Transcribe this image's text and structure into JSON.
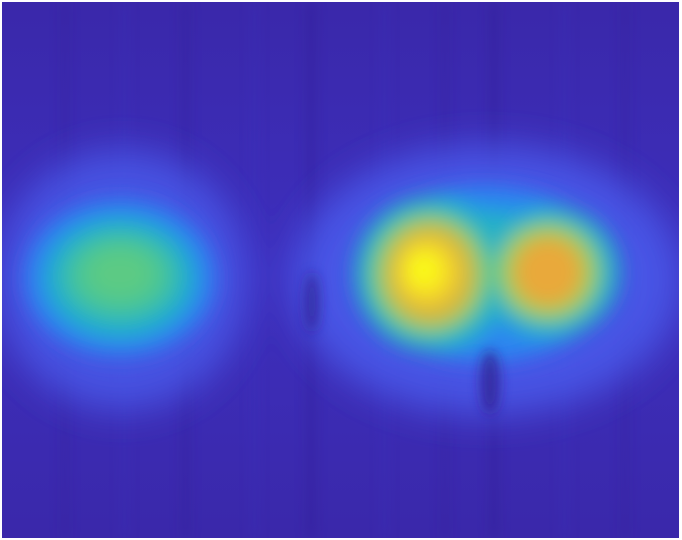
{
  "figure": {
    "type": "heatmap",
    "colormap": "parula",
    "colors": {
      "background": "#3a27a8",
      "low": "#3d38c9",
      "mid": "#2fb3c3",
      "mid_high": "#7fd06a",
      "high": "#f5b02f",
      "peak": "#f9fb14"
    },
    "hotspots": [
      {
        "name": "left-blob",
        "intensity": 0.55
      },
      {
        "name": "center-right-blob",
        "intensity": 1.0
      },
      {
        "name": "right-blob",
        "intensity": 0.78
      }
    ]
  }
}
